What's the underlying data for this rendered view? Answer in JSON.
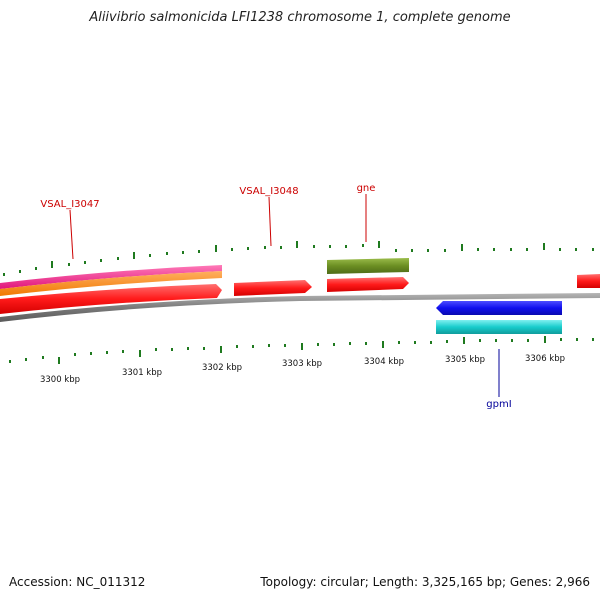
{
  "title": "Aliivibrio salmonicida LFI1238 chromosome 1, complete genome",
  "footer": {
    "accession": "Accession: NC_011312",
    "topology": "Topology: circular; Length: 3,325,165 bp; Genes: 2,966"
  },
  "colors": {
    "tick": "#1f7a1f",
    "backbone": "#888888",
    "forward_gene": "#ff1a1a",
    "reverse_gene": "#1010ee",
    "pink_track": "#ee1e86",
    "orange_track": "#ff8c1a",
    "olive_track": "#6b8e23",
    "cyan_track": "#18cccc",
    "forward_label": "#cc0000",
    "reverse_label": "#000099"
  },
  "axis": {
    "unit": "kbp",
    "ticks": [
      "3300 kbp",
      "3301 kbp",
      "3302 kbp",
      "3303 kbp",
      "3304 kbp",
      "3305 kbp",
      "3306 kbp"
    ]
  },
  "features": {
    "forward_labels": [
      "VSAL_I3047",
      "VSAL_I3048",
      "gne"
    ],
    "reverse_labels": [
      "gpmI"
    ]
  }
}
